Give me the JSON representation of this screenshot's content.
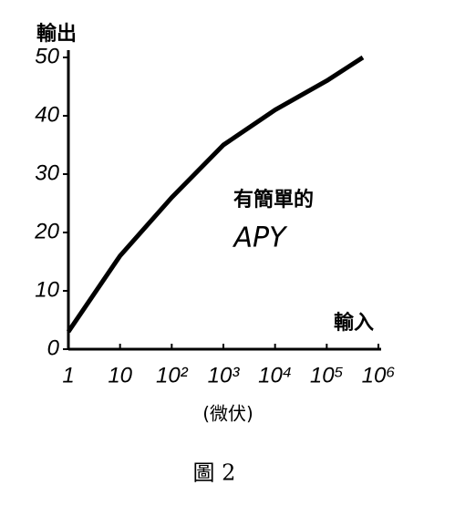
{
  "chart_data": {
    "type": "line",
    "caption": "圖 2",
    "y_label": "輸出",
    "x_label": "輸入",
    "x_unit": "(微伏)",
    "annotation": [
      "有簡單的",
      "APY"
    ],
    "xscale": "log",
    "x": [
      1,
      10,
      100,
      1000,
      10000,
      100000,
      500000
    ],
    "values": [
      3,
      16,
      26,
      35,
      41,
      46,
      50
    ],
    "color": "#000000",
    "xlim": [
      1,
      1000000
    ],
    "ylim": [
      0,
      50
    ],
    "xticks": [
      1,
      10,
      {
        "value": 100,
        "label": "10²"
      },
      {
        "value": 1000,
        "label": "10³"
      },
      {
        "value": 10000,
        "label": "10⁴"
      },
      {
        "value": 100000,
        "label": "10⁵"
      },
      {
        "value": 1000000,
        "label": "10⁶"
      }
    ],
    "yticks": [
      0,
      10,
      20,
      30,
      40,
      50
    ]
  }
}
